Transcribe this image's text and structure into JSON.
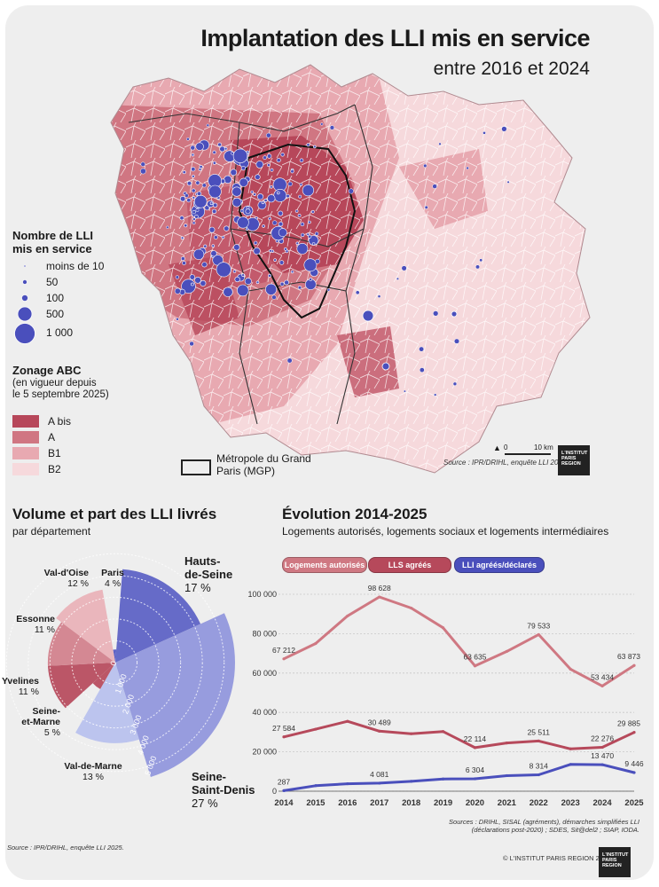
{
  "header": {
    "title": "Implantation des LLI mis en service",
    "subtitle": "entre 2016 et 2024"
  },
  "map_legend": {
    "bubbles_title_1": "Nombre de LLI",
    "bubbles_title_2": "mis en service",
    "bubbles": [
      {
        "label": "moins de 10",
        "value": 10
      },
      {
        "label": "50",
        "value": 50
      },
      {
        "label": "100",
        "value": 100
      },
      {
        "label": "500",
        "value": 500
      },
      {
        "label": "1 000",
        "value": 1000
      }
    ],
    "zonage_title": "Zonage ABC",
    "zonage_sub_1": "(en vigueur depuis",
    "zonage_sub_2": "le 5 septembre 2025)",
    "zones": [
      {
        "label": "A bis",
        "color": "#b7475a"
      },
      {
        "label": "A",
        "color": "#d07682"
      },
      {
        "label": "B1",
        "color": "#e8a9b1"
      },
      {
        "label": "B2",
        "color": "#f6d9dc"
      }
    ],
    "mgp_1": "Métropole du Grand",
    "mgp_2": "Paris (MGP)",
    "scale_0": "0",
    "scale_10": "10 km",
    "source": "Source : IPR/DRIHL, enquête LLI 2025."
  },
  "logo": {
    "line1": "L'INSTITUT",
    "line2": "PARIS",
    "line3": "REGION"
  },
  "rose": {
    "title": "Volume et part des LLI livrés",
    "subtitle": "par département",
    "color": "#5a5fc4",
    "rings": [
      "0",
      "1 000",
      "2 000",
      "3 000",
      "4 000",
      "5 000"
    ],
    "source": "Source : IPR/DRIHL, enquête LLI 2025."
  },
  "evolution": {
    "title": "Évolution 2014-2025",
    "subtitle": "Logements autorisés, logements sociaux et logements intermédiaires",
    "sources_1": "Sources : DRIHL, SISAL (agréments), démarches simplifiées LLI",
    "sources_2": "(déclarations post-2020) ; SDES, Sit@del2 ; SIAP, IODA.",
    "copyright": "© L'INSTITUT PARIS REGION 2026"
  },
  "chart_data": [
    {
      "type": "pie",
      "title": "Volume et part des LLI livrés",
      "subtitle": "par département",
      "categories": [
        "Paris",
        "Hauts-de-Seine",
        "Seine-Saint-Denis",
        "Val-de-Marne",
        "Seine-et-Marne",
        "Yvelines",
        "Essonne",
        "Val-d'Oise"
      ],
      "name_lines": [
        [
          "Paris"
        ],
        [
          "Hauts-",
          "de-Seine"
        ],
        [
          "Seine-",
          "Saint-Denis"
        ],
        [
          "Val-de-Marne"
        ],
        [
          "Seine-",
          "et-Marne"
        ],
        [
          "Yvelines"
        ],
        [
          "Essonne"
        ],
        [
          "Val-d'Oise"
        ]
      ],
      "shares": [
        "4 %",
        "17 %",
        "27 %",
        "13 %",
        "5 %",
        "11 %",
        "11 %",
        "12 %"
      ],
      "share_values": [
        4,
        17,
        27,
        13,
        5,
        11,
        11,
        12
      ],
      "radius_values": [
        600,
        4300,
        5500,
        3700,
        1400,
        3100,
        3100,
        3400
      ],
      "colors": [
        "#5257c2",
        "#5a5fc4",
        "#8f95dc",
        "#b7c0ee",
        "#b6495b",
        "#b6495b",
        "#d17f8b",
        "#e9b1b7"
      ],
      "radial_axis": {
        "ticks": [
          0,
          1000,
          2000,
          3000,
          4000,
          5000
        ],
        "max": 5500
      }
    },
    {
      "type": "line",
      "title": "Évolution 2014-2025",
      "x": [
        2014,
        2015,
        2016,
        2017,
        2018,
        2019,
        2020,
        2021,
        2022,
        2023,
        2024,
        2025
      ],
      "ylim": [
        0,
        100000
      ],
      "yticks": [
        0,
        20000,
        40000,
        60000,
        80000,
        100000
      ],
      "ytick_labels": [
        "0",
        "20 000",
        "40 000",
        "60 000",
        "80 000",
        "100 000"
      ],
      "grid": "horizontal",
      "legend_position": "top",
      "series": [
        {
          "name": "Logements autorisés",
          "color": "#cf7882",
          "values": [
            67212,
            75000,
            89000,
            98628,
            93000,
            83000,
            63635,
            71000,
            79533,
            62000,
            53434,
            63873
          ],
          "labels": {
            "0": "67 212",
            "3": "98 628",
            "6": "63 635",
            "8": "79 533",
            "10": "53 434",
            "11": "63 873"
          }
        },
        {
          "name": "LLS agréés",
          "color": "#b6495b",
          "values": [
            27584,
            31500,
            35500,
            30489,
            29200,
            30300,
            22114,
            24500,
            25511,
            21500,
            22276,
            29885
          ],
          "labels": {
            "0": "27 584",
            "3": "30 489",
            "6": "22 114",
            "8": "25 511",
            "10": "22 276",
            "11": "29 885"
          }
        },
        {
          "name": "LLI agréés/déclarés",
          "color": "#4a4fbc",
          "values": [
            287,
            2800,
            3800,
            4081,
            5000,
            6200,
            6304,
            7900,
            8314,
            13600,
            13470,
            9446
          ],
          "labels": {
            "0": "287",
            "3": "4 081",
            "6": "6 304",
            "8": "8 314",
            "10": "13 470",
            "11": "9 446"
          }
        }
      ]
    }
  ]
}
